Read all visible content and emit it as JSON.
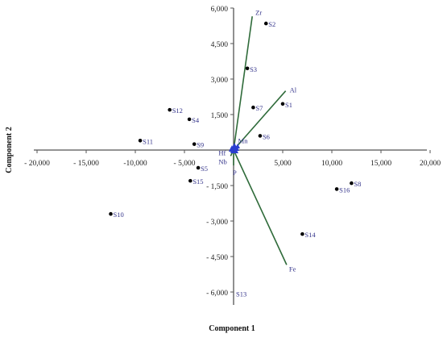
{
  "chart_data": {
    "type": "scatter",
    "title": "",
    "xlabel": "Component 1",
    "ylabel": "Component 2",
    "xlim": [
      -20000,
      20000
    ],
    "ylim": [
      -6500,
      6000
    ],
    "x_ticks": [
      -20000,
      -15000,
      -10000,
      -5000,
      5000,
      10000,
      15000,
      20000
    ],
    "y_ticks": [
      6000,
      4500,
      3000,
      1500,
      -1500,
      -3000,
      -4500,
      -6000
    ],
    "x_tick_labels": [
      "- 20,000",
      "- 15,000",
      "-10,000",
      "- 5,000",
      "5,000",
      "10,000",
      "15,000",
      "20,000"
    ],
    "y_tick_labels": [
      "6,000",
      "4,500",
      "3,000",
      "1,500",
      "- 1,500",
      "- 3,000",
      "- 4,500",
      "- 6,000"
    ],
    "grid": false,
    "points": [
      {
        "label": "S1",
        "x": 5000,
        "y": 1950
      },
      {
        "label": "S2",
        "x": 3300,
        "y": 5350
      },
      {
        "label": "S3",
        "x": 1400,
        "y": 3450
      },
      {
        "label": "S4",
        "x": -4500,
        "y": 1300
      },
      {
        "label": "S5",
        "x": -3600,
        "y": -750
      },
      {
        "label": "S6",
        "x": 2700,
        "y": 600
      },
      {
        "label": "S7",
        "x": 2000,
        "y": 1800
      },
      {
        "label": "S8",
        "x": 12000,
        "y": -1400
      },
      {
        "label": "S9",
        "x": -4000,
        "y": 250
      },
      {
        "label": "S10",
        "x": -12500,
        "y": -2700
      },
      {
        "label": "S11",
        "x": -9500,
        "y": 400
      },
      {
        "label": "S12",
        "x": -6500,
        "y": 1700
      },
      {
        "label": "S13",
        "x": 0,
        "y": -6050
      },
      {
        "label": "S14",
        "x": 7000,
        "y": -3550
      },
      {
        "label": "S15",
        "x": -4400,
        "y": -1300
      },
      {
        "label": "S16",
        "x": 10500,
        "y": -1650
      }
    ],
    "loadings": [
      {
        "label": "Zr",
        "x": 1900,
        "y": 5650
      },
      {
        "label": "Al",
        "x": 5300,
        "y": 2500
      },
      {
        "label": "Fe",
        "x": 5400,
        "y": -4850
      },
      {
        "label": "Mn",
        "x": 300,
        "y": 150
      },
      {
        "label": "Hf",
        "x": -300,
        "y": -80
      },
      {
        "label": "Nb",
        "x": -300,
        "y": -250
      },
      {
        "label": "P",
        "x": 0,
        "y": -650
      }
    ],
    "colors": {
      "axis": "#555555",
      "point": "#000000",
      "label": "#33338a",
      "vector": "#2f6b3a",
      "cluster": "#2a3dd0"
    }
  }
}
